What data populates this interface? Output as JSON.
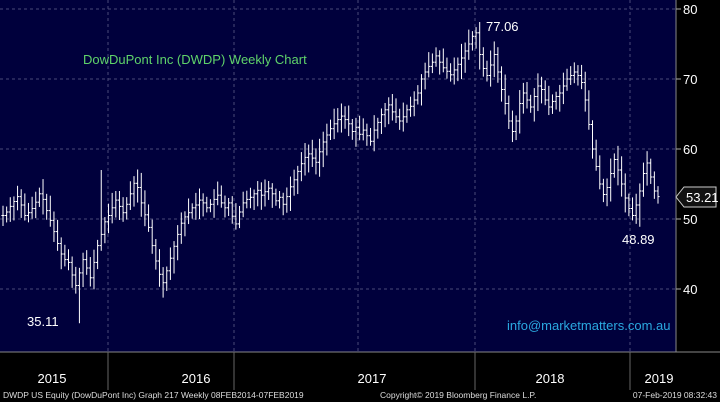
{
  "chart_data": {
    "type": "ohlc",
    "title": "DowDuPont Inc (DWDP) Weekly Chart",
    "xlabel": "",
    "ylabel": "",
    "x_tick_labels": [
      "2015",
      "2016",
      "2017",
      "2018",
      "2019"
    ],
    "y_tick_labels": [
      "40",
      "50",
      "60",
      "70",
      "80"
    ],
    "ylim": [
      33,
      82
    ],
    "grid": true,
    "last_price": "53.21",
    "annotations": [
      {
        "text": "77.06",
        "x": "2017-12",
        "y": 77.06
      },
      {
        "text": "35.11",
        "x": "2015-08",
        "y": 35.11
      },
      {
        "text": "48.89",
        "x": "2018-12",
        "y": 48.89
      }
    ],
    "watermark": "info@marketmatters.com.au",
    "footer_left": "DWDP US Equity (DowDuPont Inc) Graph 217  Weekly 08FEB2014-07FEB2019",
    "footer_center": "Copyright© 2019 Bloomberg Finance L.P.",
    "footer_right": "07-Feb-2019 08:32:43",
    "closes": [
      50.5,
      51.0,
      51.8,
      52.5,
      53.2,
      52.0,
      50.5,
      50.9,
      51.5,
      52.4,
      53.6,
      52.8,
      51.2,
      49.8,
      48.2,
      46.5,
      45.0,
      44.2,
      43.8,
      42.0,
      40.5,
      42.3,
      44.2,
      43.0,
      41.6,
      43.8,
      46.2,
      47.8,
      49.6,
      50.5,
      51.6,
      52.7,
      51.8,
      50.9,
      52.1,
      53.6,
      55.1,
      54.5,
      52.3,
      50.6,
      48.8,
      46.2,
      44.0,
      42.1,
      40.9,
      42.6,
      44.4,
      46.1,
      47.8,
      49.4,
      50.3,
      50.9,
      51.6,
      52.0,
      52.7,
      52.3,
      51.6,
      52.1,
      52.8,
      53.4,
      52.3,
      51.6,
      52.3,
      50.4,
      49.3,
      51.0,
      52.3,
      52.8,
      53.1,
      53.6,
      54.1,
      53.4,
      53.9,
      54.4,
      53.6,
      52.6,
      53.1,
      52.1,
      53.2,
      54.6,
      55.6,
      56.8,
      57.9,
      58.8,
      59.3,
      58.7,
      58.1,
      59.6,
      61.0,
      62.0,
      62.9,
      63.6,
      64.2,
      64.7,
      64.2,
      63.6,
      62.5,
      63.1,
      62.1,
      62.7,
      61.9,
      61.1,
      62.7,
      63.8,
      64.9,
      65.6,
      66.3,
      65.3,
      64.6,
      64.0,
      64.6,
      65.6,
      66.1,
      67.0,
      68.0,
      70.0,
      71.0,
      71.8,
      72.4,
      73.3,
      72.4,
      71.6,
      71.1,
      70.6,
      71.3,
      72.1,
      73.0,
      74.0,
      75.0,
      76.1,
      76.6,
      73.5,
      71.5,
      70.5,
      72.0,
      73.5,
      71.0,
      68.5,
      66.5,
      64.0,
      62.5,
      64.0,
      66.5,
      68.0,
      67.0,
      66.0,
      67.5,
      69.0,
      68.5,
      67.0,
      66.0,
      66.8,
      67.5,
      68.0,
      69.0,
      70.0,
      70.5,
      71.0,
      70.5,
      69.5,
      67.0,
      63.5,
      60.0,
      57.5,
      55.0,
      53.5,
      54.5,
      56.5,
      58.5,
      57.0,
      55.0,
      53.0,
      51.5,
      50.5,
      52.0,
      54.0,
      56.5,
      58.0,
      56.0,
      54.0,
      53.2
    ]
  }
}
